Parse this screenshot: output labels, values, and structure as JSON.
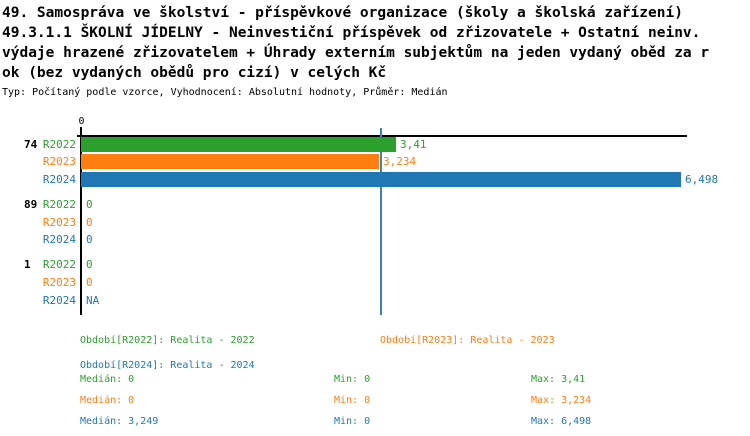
{
  "header": {
    "title_lines": [
      "49. Samospráva ve školství - příspěvkové organizace (školy a školská zařízení)",
      "49.3.1.1 ŠKOLNÍ JÍDELNY - Neinvestiční příspěvek od zřizovatele + Ostatní neinv.",
      "výdaje hrazené zřizovatelem + Úhrady externím subjektům na jeden vydaný oběd za r",
      "ok (bez vydaných obědů pro cizí) v celých Kč"
    ],
    "meta_line": "Typ: Počítaný podle vzorce, Vyhodnocení: Absolutní hodnoty, Průměr: Medián"
  },
  "chart_data": {
    "type": "bar",
    "orientation": "horizontal",
    "title": "49.3.1.1 ŠKOLNÍ JÍDELNY - Neinvestiční příspěvek od zřizovatele + Ostatní neinv. výdaje hrazené zřizovatelem + Úhrady externím subjektům na jeden vydaný oběd za rok (bez vydaných obědů pro cizí) v celých Kč",
    "x_axis": {
      "tick_labels": [
        "0"
      ],
      "range": [
        0,
        6.6
      ],
      "grid": false
    },
    "series_colors": {
      "R2022": "#2ca02c",
      "R2023": "#ff7f0e",
      "R2024": "#1f77b4"
    },
    "median_line": {
      "value": 3.249,
      "color": "#3585c5"
    },
    "groups": [
      {
        "label": "74",
        "bars": [
          {
            "series": "R2022",
            "value": 3.41,
            "display": "3,41"
          },
          {
            "series": "R2023",
            "value": 3.234,
            "display": "3,234"
          },
          {
            "series": "R2024",
            "value": 6.498,
            "display": "6,498"
          }
        ]
      },
      {
        "label": "89",
        "bars": [
          {
            "series": "R2022",
            "value": 0,
            "display": "0"
          },
          {
            "series": "R2023",
            "value": 0,
            "display": "0"
          },
          {
            "series": "R2024",
            "value": 0,
            "display": "0"
          }
        ]
      },
      {
        "label": "1",
        "bars": [
          {
            "series": "R2022",
            "value": 0,
            "display": "0"
          },
          {
            "series": "R2023",
            "value": 0,
            "display": "0"
          },
          {
            "series": "R2024",
            "value": null,
            "display": "NA"
          }
        ]
      }
    ]
  },
  "legend": {
    "items": [
      {
        "label": "Období[R2022]: Realita - 2022",
        "color": "#2ca02c"
      },
      {
        "label": "Období[R2023]: Realita - 2023",
        "color": "#ff7f0e"
      },
      {
        "label": "Období[R2024]: Realita - 2024",
        "color": "#1f77b4"
      }
    ]
  },
  "stats": {
    "rows": [
      {
        "series": "R2022",
        "color": "#2ca02c",
        "median": "Medián: 0",
        "min": "Min: 0",
        "max": "Max: 3,41"
      },
      {
        "series": "R2023",
        "color": "#ff7f0e",
        "median": "Medián: 0",
        "min": "Min: 0",
        "max": "Max: 3,234"
      },
      {
        "series": "R2024",
        "color": "#1f77b4",
        "median": "Medián: 3,249",
        "min": "Min: 0",
        "max": "Max: 6,498"
      }
    ]
  }
}
